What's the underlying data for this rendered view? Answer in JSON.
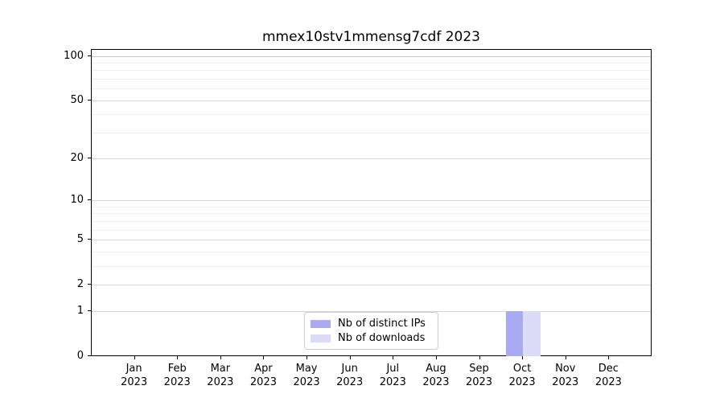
{
  "chart_data": {
    "type": "bar",
    "title": "mmex10stv1mmensg7cdf 2023",
    "categories": [
      "Jan\n2023",
      "Feb\n2023",
      "Mar\n2023",
      "Apr\n2023",
      "May\n2023",
      "Jun\n2023",
      "Jul\n2023",
      "Aug\n2023",
      "Sep\n2023",
      "Oct\n2023",
      "Nov\n2023",
      "Dec\n2023"
    ],
    "series": [
      {
        "name": "Nb of distinct IPs",
        "color": "#aaaaf2",
        "values": [
          0,
          0,
          0,
          0,
          0,
          0,
          0,
          0,
          0,
          1,
          0,
          0
        ]
      },
      {
        "name": "Nb of downloads",
        "color": "#dcdcf8",
        "values": [
          0,
          0,
          0,
          0,
          0,
          0,
          0,
          0,
          0,
          1,
          0,
          0
        ]
      }
    ],
    "xlabel": "",
    "ylabel": "",
    "yscale": "log1p",
    "yticks": [
      0,
      1,
      2,
      5,
      10,
      20,
      50,
      100
    ],
    "yminor_ticks": [
      3,
      4,
      6,
      7,
      8,
      9,
      30,
      40,
      60,
      70,
      80,
      90
    ],
    "ylim": [
      0,
      114
    ],
    "grid": "both",
    "grid_major_color": "#d6d6d6",
    "grid_minor_color": "#efefef",
    "grid_top_color": "#c9c9c9",
    "axis_color": "#000000",
    "legend_position": "lower center"
  }
}
